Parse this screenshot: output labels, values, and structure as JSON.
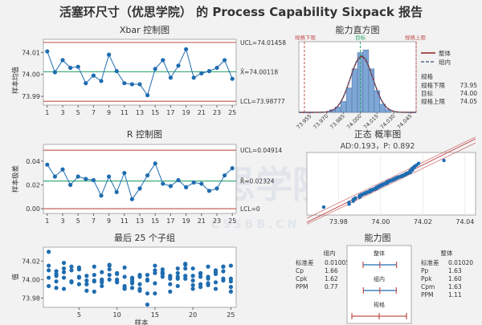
{
  "title": "活塞环尺寸（优思学院） 的 Process Capability Sixpack 报告",
  "watermark": {
    "text": "优思学院",
    "subtext": "CSSBB.CN"
  },
  "colors": {
    "accent": "#1f6cb0",
    "center": "#2ea56b",
    "limit": "#c0504d",
    "spec": "#c0504d",
    "within": "#5a6d93",
    "hist": "#7ea6d6"
  },
  "chart_data": [
    {
      "id": "xbar",
      "type": "line",
      "title": "Xbar 控制图",
      "ylabel": "样本均值",
      "x": [
        1,
        2,
        3,
        4,
        5,
        6,
        7,
        8,
        9,
        10,
        11,
        12,
        13,
        14,
        15,
        16,
        17,
        18,
        19,
        20,
        21,
        22,
        23,
        24,
        25
      ],
      "values": [
        74.0105,
        74.001,
        74.0065,
        74.003,
        74.0035,
        73.996,
        73.9995,
        73.997,
        74.009,
        74.0015,
        73.996,
        73.9955,
        73.9955,
        73.9905,
        74.0025,
        74.0065,
        73.9985,
        74.004,
        74.0115,
        73.9985,
        74.0005,
        74.0015,
        74.003,
        74.0065,
        73.998
      ],
      "ylim": [
        73.986,
        74.016
      ],
      "yticks": [
        73.99,
        74.0,
        74.01
      ],
      "xticks": [
        1,
        3,
        5,
        7,
        9,
        11,
        13,
        15,
        17,
        19,
        21,
        23,
        25
      ],
      "ucl": 74.01458,
      "center": 74.00118,
      "lcl": 73.98777,
      "labels": {
        "ucl": "UCL=74.01458",
        "center": "X̄=74.00118",
        "lcl": "LCL=73.98777"
      }
    },
    {
      "id": "r",
      "type": "line",
      "title": "R 控制图",
      "ylabel": "样本极差",
      "x": [
        1,
        2,
        3,
        4,
        5,
        6,
        7,
        8,
        9,
        10,
        11,
        12,
        13,
        14,
        15,
        16,
        17,
        18,
        19,
        20,
        21,
        22,
        23,
        24,
        25
      ],
      "values": [
        0.037,
        0.027,
        0.033,
        0.02,
        0.027,
        0.025,
        0.024,
        0.011,
        0.027,
        0.014,
        0.03,
        0.008,
        0.017,
        0.028,
        0.038,
        0.021,
        0.019,
        0.024,
        0.018,
        0.022,
        0.021,
        0.015,
        0.017,
        0.028,
        0.034
      ],
      "ylim": [
        -0.004,
        0.054
      ],
      "yticks": [
        0.0,
        0.02,
        0.04
      ],
      "xticks": [
        1,
        3,
        5,
        7,
        9,
        11,
        13,
        15,
        17,
        19,
        21,
        23,
        25
      ],
      "ucl": 0.04914,
      "center": 0.02324,
      "lcl": 0,
      "labels": {
        "ucl": "UCL=0.04914",
        "center": "R̄=0.02324",
        "lcl": "LCL=0"
      }
    },
    {
      "id": "last25",
      "type": "scatter",
      "title": "最后 25 个子组",
      "ylabel": "值",
      "xlabel": "样本",
      "ylim": [
        73.97,
        74.035
      ],
      "yticks": [
        73.98,
        74.0,
        74.02
      ],
      "xticks": [
        5,
        10,
        15,
        20,
        25
      ],
      "xlim": [
        0.3,
        25.7
      ],
      "subgroups": [
        [
          74.03,
          74.015,
          74.01,
          73.993,
          74.002
        ],
        [
          73.998,
          74.004,
          74.006,
          74.009,
          73.991
        ],
        [
          74.018,
          74.008,
          74.002,
          73.99,
          74.012
        ],
        [
          74.01,
          74.014,
          73.997,
          73.998,
          73.998
        ],
        [
          74.011,
          74.013,
          74.003,
          73.995,
          74.002
        ],
        [
          74.004,
          73.995,
          73.988,
          73.999,
          73.995
        ],
        [
          73.999,
          73.998,
          74.014,
          74.005,
          73.987
        ],
        [
          74.0,
          73.997,
          73.999,
          73.993,
          74.008
        ],
        [
          74.0,
          74.015,
          74.005,
          74.011,
          74.016
        ],
        [
          74.006,
          73.997,
          74.007,
          73.998,
          74.0
        ],
        [
          74.013,
          74.003,
          73.991,
          73.99,
          73.993
        ],
        [
          73.996,
          73.998,
          73.991,
          74.0,
          74.002
        ],
        [
          74.003,
          74.005,
          73.995,
          73.988,
          73.99
        ],
        [
          74.0,
          73.985,
          74.005,
          73.999,
          73.973
        ],
        [
          74.015,
          74.007,
          73.985,
          74.01,
          73.996
        ],
        [
          74.007,
          74.003,
          74.011,
          74.006,
          74.008
        ],
        [
          73.995,
          74.001,
          74.003,
          74.004,
          73.987
        ],
        [
          74.012,
          73.993,
          74.001,
          74.003,
          74.007
        ],
        [
          74.017,
          74.001,
          74.016,
          74.004,
          74.012
        ],
        [
          74.004,
          74.012,
          73.99,
          73.994,
          73.999
        ],
        [
          74.003,
          74.007,
          73.992,
          74.006,
          73.995
        ],
        [
          74.003,
          73.994,
          74.001,
          73.996,
          74.014
        ],
        [
          74.006,
          73.997,
          74.008,
          74.01,
          73.99
        ],
        [
          74.001,
          74.009,
          74.014,
          74.014,
          73.999
        ],
        [
          73.987,
          74.015,
          74.001,
          73.992,
          73.998
        ]
      ]
    },
    {
      "id": "hist",
      "type": "bar",
      "title": "能力直方图",
      "categories": [
        "73.955",
        "73.970",
        "73.985",
        "74.000",
        "74.015",
        "74.030",
        "74.045"
      ],
      "bins": [
        73.9475,
        73.9525,
        73.9575,
        73.9625,
        73.9675,
        73.9725,
        73.9775,
        73.9825,
        73.9875,
        73.9925,
        73.9975,
        74.0025,
        74.0075,
        74.0125,
        74.0175,
        74.0225,
        74.0275,
        74.0325,
        74.0375,
        74.0425,
        74.0475
      ],
      "counts": [
        0,
        0,
        0,
        0,
        0,
        1,
        2,
        4,
        9,
        16,
        22,
        23,
        16,
        8,
        3,
        1,
        0,
        0,
        0,
        0
      ],
      "xlim": [
        73.945,
        74.05
      ],
      "lsl": 73.95,
      "target": 74.0,
      "usl": 74.05,
      "mean": 74.00118,
      "sd_overall": 0.0102,
      "sd_within": 0.01005,
      "spec_labels": {
        "lsl": "规格下限",
        "target": "目标",
        "usl": "规格上限"
      },
      "legend": {
        "overall": "整体",
        "within": "组内",
        "specs_title": "规格"
      },
      "specs_table": [
        {
          "label": "规格下限",
          "value": "73.95"
        },
        {
          "label": "目标",
          "value": "74.00"
        },
        {
          "label": "规格上限",
          "value": "74.05"
        }
      ]
    },
    {
      "id": "prob",
      "type": "scatter",
      "title": "正态 概率图",
      "subtitle": "AD:0.193，P: 0.892",
      "xticks": [
        73.98,
        74.0,
        74.02,
        74.04
      ],
      "xlim": [
        73.965,
        74.045
      ]
    },
    {
      "id": "capability",
      "type": "table",
      "title": "能力图",
      "within_title": "组内",
      "within_rows": [
        {
          "label": "标准差",
          "value": "0.01005"
        },
        {
          "label": "Cp",
          "value": "1.66"
        },
        {
          "label": "Cpk",
          "value": "1.62"
        },
        {
          "label": "PPM",
          "value": "0.77"
        }
      ],
      "overall_title": "整体",
      "overall_rows": [
        {
          "label": "标准差",
          "value": "0.01020"
        },
        {
          "label": "Pp",
          "value": "1.63"
        },
        {
          "label": "Ppk",
          "value": "1.60"
        },
        {
          "label": "Cpm",
          "value": "1.63"
        },
        {
          "label": "PPM",
          "value": "1.11"
        }
      ],
      "box_labels": [
        "整体",
        "组内",
        "规格"
      ]
    }
  ]
}
